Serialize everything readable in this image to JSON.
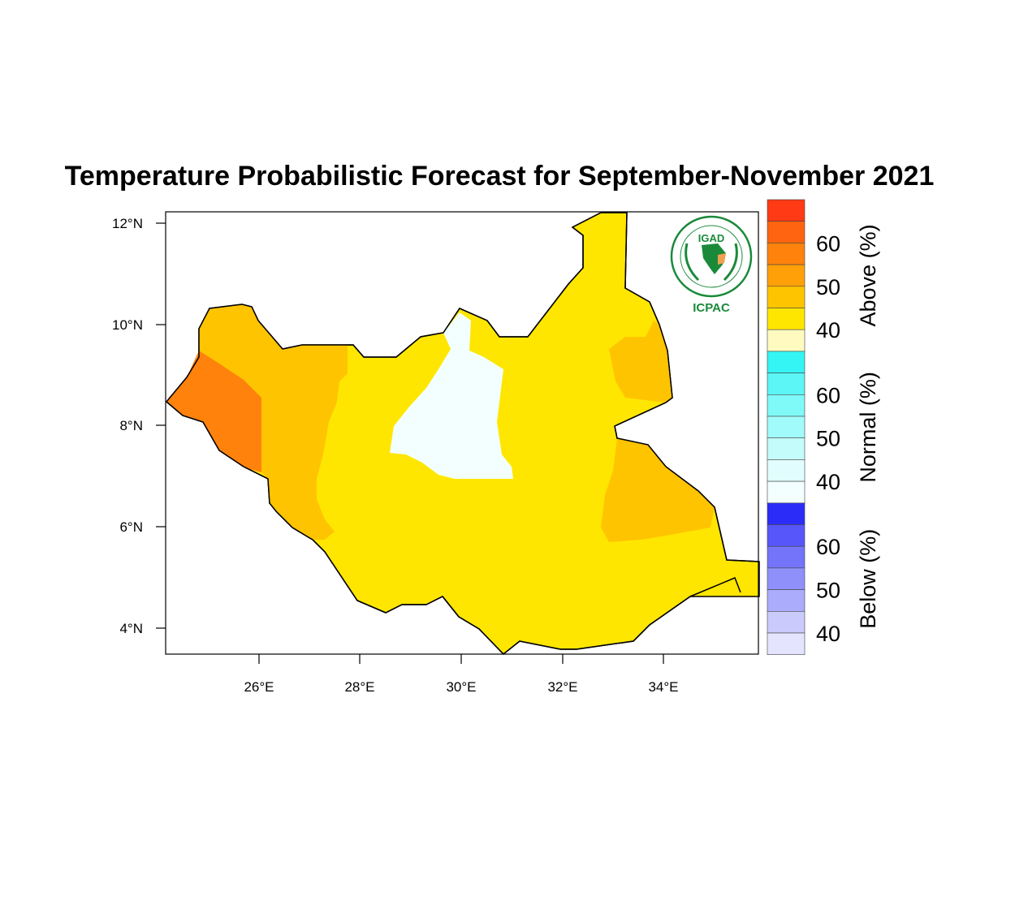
{
  "title": "Temperature Probabilistic Forecast for September-November 2021",
  "axes": {
    "lat_ticks": [
      "12°N",
      "10°N",
      "8°N",
      "6°N",
      "4°N"
    ],
    "lon_ticks": [
      "26°E",
      "28°E",
      "30°E",
      "32°E",
      "34°E"
    ]
  },
  "logo": {
    "top_text": "IGAD",
    "bottom_text": "ICPAC"
  },
  "colorbar": {
    "groups": [
      {
        "name": "Above (%)",
        "labels": [
          "60",
          "50",
          "40"
        ],
        "colors": [
          "#ff3a14",
          "#ff6410",
          "#ff820c",
          "#ffa008",
          "#ffc400",
          "#ffe600",
          "#fffbc0"
        ]
      },
      {
        "name": "Normal (%)",
        "labels": [
          "60",
          "50",
          "40"
        ],
        "colors": [
          "#34f4f4",
          "#5cf6f6",
          "#80f9f9",
          "#a2fbfb",
          "#c4fcfc",
          "#e2fdfd",
          "#f2fffe"
        ]
      },
      {
        "name": "Below (%)",
        "labels": [
          "60",
          "50",
          "40"
        ],
        "colors": [
          "#2c2cf8",
          "#5656fa",
          "#7474fa",
          "#9090fb",
          "#acacfc",
          "#cacafd",
          "#e4e4fe"
        ]
      }
    ]
  },
  "legend_colors": {
    "above_40_45": "#ffe600",
    "above_45_50": "#ffc400",
    "above_55_60": "#ff820c",
    "normal_40_45": "#f2fffe"
  }
}
